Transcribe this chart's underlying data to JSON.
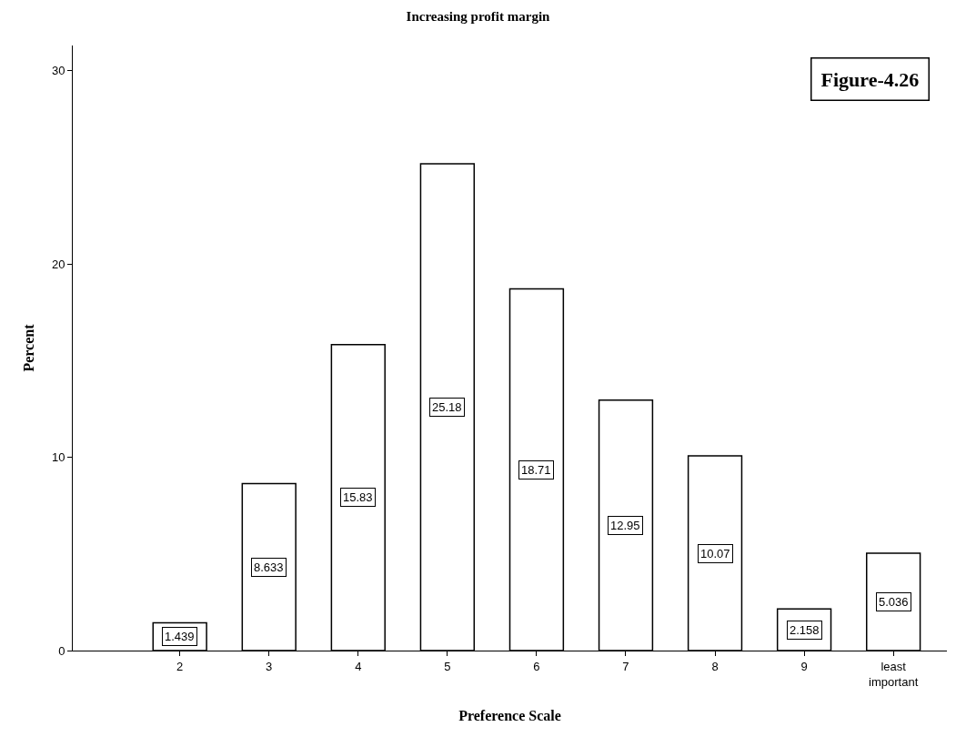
{
  "chart_data": {
    "type": "bar",
    "title": "Increasing profit margin",
    "xlabel": "Preference Scale",
    "ylabel": "Percent",
    "categories": [
      "2",
      "3",
      "4",
      "5",
      "6",
      "7",
      "8",
      "9",
      "least\nimportant"
    ],
    "values": [
      1.439,
      8.633,
      15.83,
      25.18,
      18.71,
      12.95,
      10.07,
      2.158,
      5.036
    ],
    "color": "#ffffff",
    "ylim": [
      0,
      31.3
    ],
    "yticks": [
      0,
      10,
      20,
      30
    ],
    "legend": false,
    "data_labels": true,
    "annotations": [
      "Figure-4.26"
    ]
  }
}
